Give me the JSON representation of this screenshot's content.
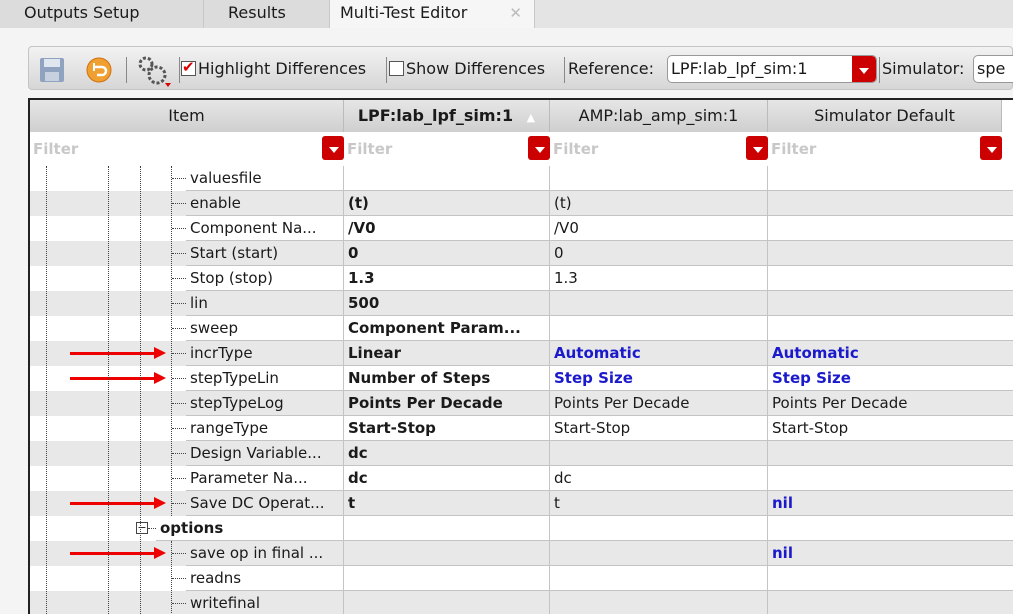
{
  "tabs": [
    {
      "label": "Outputs Setup"
    },
    {
      "label": "Results"
    },
    {
      "label": "Multi-Test Editor",
      "active": true,
      "close": "✕"
    }
  ],
  "toolbar": {
    "save_icon": "save-icon",
    "revert_icon": "undo-icon",
    "settings_icon": "gears-icon",
    "highlight_label": "Highlight Differences",
    "highlight_checked": true,
    "show_label": "Show Differences",
    "show_checked": false,
    "reference_label": "Reference:",
    "reference_value": "LPF:lab_lpf_sim:1",
    "simulator_label": "Simulator:",
    "simulator_value": "spe"
  },
  "columns": [
    {
      "label": "Item"
    },
    {
      "label": "LPF:lab_lpf_sim:1",
      "sort": "▲"
    },
    {
      "label": "AMP:lab_amp_sim:1"
    },
    {
      "label": "Simulator Default"
    }
  ],
  "filter_placeholder": "Filter",
  "colors": {
    "highlight": "#1a1acc",
    "arrow": "#e00000",
    "filter_button": "#cc0000"
  },
  "rows": [
    {
      "item": "valuesfile",
      "c1": "",
      "c2": "",
      "c3": ""
    },
    {
      "item": "enable",
      "c1": "(t)",
      "c2": "(t)",
      "c3": ""
    },
    {
      "item": "Component Na...",
      "c1": "/V0",
      "c2": "/V0",
      "c3": ""
    },
    {
      "item": "Start (start)",
      "c1": "0",
      "c2": "0",
      "c3": ""
    },
    {
      "item": "Stop (stop)",
      "c1": "1.3",
      "c2": "1.3",
      "c3": ""
    },
    {
      "item": "lin",
      "c1": "500",
      "c2": "",
      "c3": ""
    },
    {
      "item": "sweep",
      "c1": "Component Param...",
      "c2": "",
      "c3": ""
    },
    {
      "item": "incrType",
      "c1": "Linear",
      "c2": "Automatic",
      "c3": "Automatic",
      "diff2": true,
      "diff3": true,
      "arrow": true
    },
    {
      "item": "stepTypeLin",
      "c1": "Number of Steps",
      "c2": "Step Size",
      "c3": "Step Size",
      "diff2": true,
      "diff3": true,
      "arrow": true
    },
    {
      "item": "stepTypeLog",
      "c1": "Points Per Decade",
      "c2": "Points Per Decade",
      "c3": "Points Per Decade"
    },
    {
      "item": "rangeType",
      "c1": "Start-Stop",
      "c2": "Start-Stop",
      "c3": "Start-Stop"
    },
    {
      "item": "Design Variable...",
      "c1": "dc",
      "c2": "",
      "c3": ""
    },
    {
      "item": "Parameter Na...",
      "c1": "dc",
      "c2": "dc",
      "c3": ""
    },
    {
      "item": "Save DC Operat...",
      "c1": "t",
      "c2": "t",
      "c3": "nil",
      "diff3": true,
      "arrow": true
    },
    {
      "item": "options",
      "c1": "",
      "c2": "",
      "c3": "",
      "group": true,
      "expander": "−"
    },
    {
      "item": "save op in final ...",
      "c1": "",
      "c2": "",
      "c3": "nil",
      "diff3": true,
      "arrow": true
    },
    {
      "item": "readns",
      "c1": "",
      "c2": "",
      "c3": ""
    },
    {
      "item": "writefinal",
      "c1": "",
      "c2": "",
      "c3": ""
    }
  ]
}
